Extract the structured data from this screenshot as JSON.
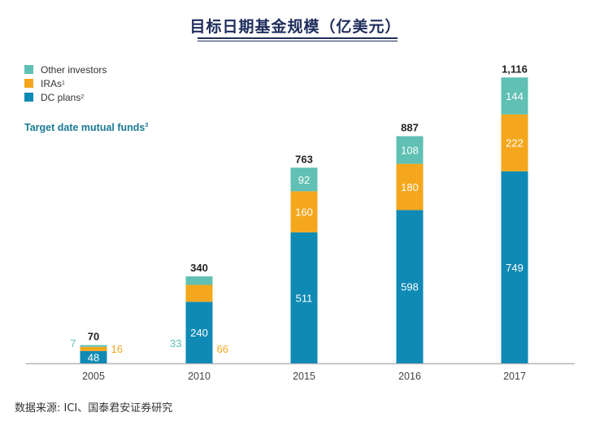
{
  "header": {
    "title": "目标日期基金规模（亿美元）"
  },
  "legend": [
    {
      "label": "Other investors",
      "sup": "",
      "color": "#5fc0b3"
    },
    {
      "label": "IRAs",
      "sup": "1",
      "color": "#f4a71d"
    },
    {
      "label": "DC plans",
      "sup": "2",
      "color": "#0f8ab4"
    }
  ],
  "subtitle": {
    "text": "Target date mutual funds",
    "sup": "3"
  },
  "source": "数据来源: ICI、国泰君安证券研究",
  "chart_data": {
    "type": "bar",
    "stacked": true,
    "categories": [
      "2005",
      "2010",
      "2015",
      "2016",
      "2017"
    ],
    "series": [
      {
        "name": "DC plans",
        "values": [
          48,
          240,
          511,
          598,
          749
        ],
        "color": "#0f8ab4"
      },
      {
        "name": "IRAs",
        "values": [
          16,
          66,
          160,
          180,
          222
        ],
        "color": "#f4a71d"
      },
      {
        "name": "Other investors",
        "values": [
          7,
          33,
          92,
          108,
          144
        ],
        "color": "#5fc0b3"
      }
    ],
    "totals": [
      "70",
      "340",
      "763",
      "887",
      "1,116"
    ],
    "ylim": [
      0,
      1116
    ],
    "grid": false,
    "legend_position": "top-left"
  }
}
